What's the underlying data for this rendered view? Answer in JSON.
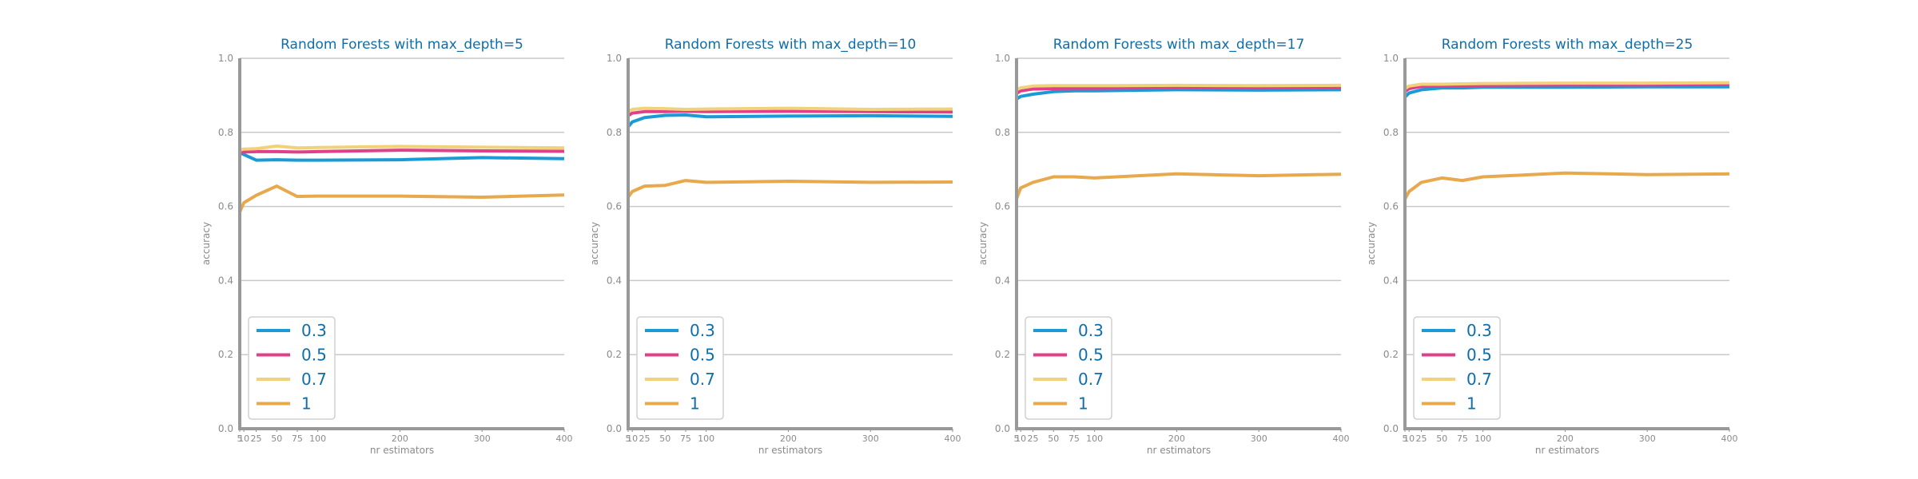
{
  "chart_data": [
    {
      "type": "line",
      "title": "Random Forests with max_depth=5",
      "xlabel": "nr estimators",
      "ylabel": "accuracy",
      "ylim": [
        0,
        1
      ],
      "xlim": [
        5,
        400
      ],
      "x": [
        5,
        10,
        25,
        50,
        75,
        100,
        200,
        300,
        400
      ],
      "xticks": [
        5,
        10,
        25,
        50,
        75,
        100,
        200,
        300,
        400
      ],
      "xtick_labels": [
        "5",
        "10",
        "25",
        "50",
        "75",
        "100",
        "200",
        "300",
        "400"
      ],
      "yticks": [
        0.0,
        0.2,
        0.4,
        0.6,
        0.8,
        1.0
      ],
      "ytick_labels": [
        "0.0",
        "0.2",
        "0.4",
        "0.6",
        "0.8",
        "1.0"
      ],
      "grid": "horizontal",
      "legend": "lower-left",
      "series": [
        {
          "name": "0.3",
          "color": "#1b9ad6",
          "values": [
            0.745,
            0.74,
            0.725,
            0.726,
            0.725,
            0.725,
            0.726,
            0.732,
            0.729
          ]
        },
        {
          "name": "0.5",
          "color": "#e0408a",
          "values": [
            0.745,
            0.747,
            0.748,
            0.748,
            0.747,
            0.748,
            0.752,
            0.75,
            0.749
          ]
        },
        {
          "name": "0.7",
          "color": "#f0d27a",
          "values": [
            0.752,
            0.755,
            0.756,
            0.763,
            0.758,
            0.759,
            0.762,
            0.76,
            0.758
          ]
        },
        {
          "name": "1",
          "color": "#e8a84c",
          "values": [
            0.585,
            0.61,
            0.63,
            0.655,
            0.627,
            0.628,
            0.628,
            0.625,
            0.631
          ]
        }
      ]
    },
    {
      "type": "line",
      "title": "Random Forests with max_depth=10",
      "xlabel": "nr estimators",
      "ylabel": "accuracy",
      "ylim": [
        0,
        1
      ],
      "xlim": [
        5,
        400
      ],
      "x": [
        5,
        10,
        25,
        50,
        75,
        100,
        200,
        300,
        400
      ],
      "xticks": [
        5,
        10,
        25,
        50,
        75,
        100,
        200,
        300,
        400
      ],
      "xtick_labels": [
        "5",
        "10",
        "25",
        "50",
        "75",
        "100",
        "200",
        "300",
        "400"
      ],
      "yticks": [
        0.0,
        0.2,
        0.4,
        0.6,
        0.8,
        1.0
      ],
      "ytick_labels": [
        "0.0",
        "0.2",
        "0.4",
        "0.6",
        "0.8",
        "1.0"
      ],
      "grid": "horizontal",
      "legend": "lower-left",
      "series": [
        {
          "name": "0.3",
          "color": "#1b9ad6",
          "values": [
            0.815,
            0.828,
            0.84,
            0.846,
            0.847,
            0.842,
            0.844,
            0.845,
            0.843
          ]
        },
        {
          "name": "0.5",
          "color": "#e0408a",
          "values": [
            0.845,
            0.852,
            0.856,
            0.856,
            0.857,
            0.856,
            0.857,
            0.856,
            0.855
          ]
        },
        {
          "name": "0.7",
          "color": "#f0d27a",
          "values": [
            0.855,
            0.862,
            0.865,
            0.864,
            0.862,
            0.863,
            0.865,
            0.862,
            0.863
          ]
        },
        {
          "name": "1",
          "color": "#e8a84c",
          "values": [
            0.625,
            0.64,
            0.655,
            0.657,
            0.67,
            0.665,
            0.668,
            0.665,
            0.666
          ]
        }
      ]
    },
    {
      "type": "line",
      "title": "Random Forests with max_depth=17",
      "xlabel": "nr estimators",
      "ylabel": "accuracy",
      "ylim": [
        0,
        1
      ],
      "xlim": [
        5,
        400
      ],
      "x": [
        5,
        10,
        25,
        50,
        75,
        100,
        200,
        300,
        400
      ],
      "xticks": [
        5,
        10,
        25,
        50,
        75,
        100,
        200,
        300,
        400
      ],
      "xtick_labels": [
        "5",
        "10",
        "25",
        "50",
        "75",
        "100",
        "200",
        "300",
        "400"
      ],
      "yticks": [
        0.0,
        0.2,
        0.4,
        0.6,
        0.8,
        1.0
      ],
      "ytick_labels": [
        "0.0",
        "0.2",
        "0.4",
        "0.6",
        "0.8",
        "1.0"
      ],
      "grid": "horizontal",
      "legend": "lower-left",
      "series": [
        {
          "name": "0.3",
          "color": "#1b9ad6",
          "values": [
            0.89,
            0.897,
            0.903,
            0.91,
            0.912,
            0.912,
            0.915,
            0.914,
            0.915
          ]
        },
        {
          "name": "0.5",
          "color": "#e0408a",
          "values": [
            0.905,
            0.912,
            0.917,
            0.918,
            0.919,
            0.919,
            0.921,
            0.92,
            0.921
          ]
        },
        {
          "name": "0.7",
          "color": "#f0d27a",
          "values": [
            0.915,
            0.92,
            0.925,
            0.926,
            0.926,
            0.926,
            0.927,
            0.926,
            0.927
          ]
        },
        {
          "name": "1",
          "color": "#e8a84c",
          "values": [
            0.62,
            0.65,
            0.665,
            0.68,
            0.68,
            0.677,
            0.688,
            0.683,
            0.687
          ]
        }
      ]
    },
    {
      "type": "line",
      "title": "Random Forests with max_depth=25",
      "xlabel": "nr estimators",
      "ylabel": "accuracy",
      "ylim": [
        0,
        1
      ],
      "xlim": [
        5,
        400
      ],
      "x": [
        5,
        10,
        25,
        50,
        75,
        100,
        200,
        300,
        400
      ],
      "xticks": [
        5,
        10,
        25,
        50,
        75,
        100,
        200,
        300,
        400
      ],
      "xtick_labels": [
        "5",
        "10",
        "25",
        "50",
        "75",
        "100",
        "200",
        "300",
        "400"
      ],
      "yticks": [
        0.0,
        0.2,
        0.4,
        0.6,
        0.8,
        1.0
      ],
      "ytick_labels": [
        "0.0",
        "0.2",
        "0.4",
        "0.6",
        "0.8",
        "1.0"
      ],
      "grid": "horizontal",
      "legend": "lower-left",
      "series": [
        {
          "name": "0.3",
          "color": "#1b9ad6",
          "values": [
            0.895,
            0.906,
            0.915,
            0.92,
            0.92,
            0.922,
            0.922,
            0.923,
            0.923
          ]
        },
        {
          "name": "0.5",
          "color": "#e0408a",
          "values": [
            0.91,
            0.918,
            0.924,
            0.925,
            0.926,
            0.927,
            0.928,
            0.928,
            0.929
          ]
        },
        {
          "name": "0.7",
          "color": "#f0d27a",
          "values": [
            0.918,
            0.925,
            0.93,
            0.93,
            0.931,
            0.932,
            0.933,
            0.933,
            0.934
          ]
        },
        {
          "name": "1",
          "color": "#e8a84c",
          "values": [
            0.62,
            0.64,
            0.665,
            0.677,
            0.67,
            0.68,
            0.69,
            0.686,
            0.688
          ]
        }
      ]
    }
  ]
}
